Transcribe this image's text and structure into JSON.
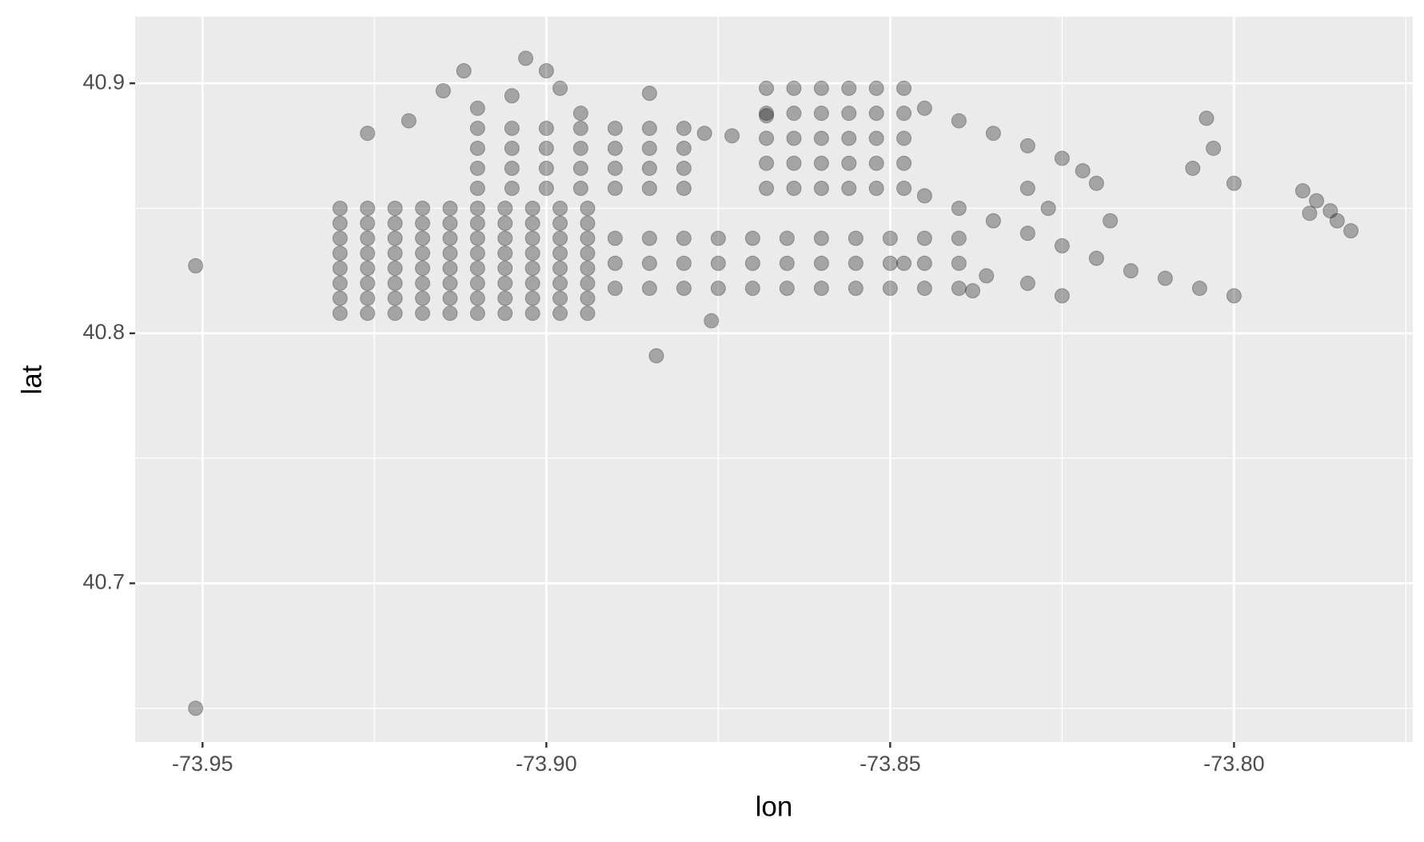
{
  "chart_data": {
    "type": "scatter",
    "x_label": "lon",
    "y_label": "lat",
    "xlim": [
      -73.9598,
      -73.774
    ],
    "ylim": [
      40.6365,
      40.9266
    ],
    "xticks": [
      -73.95,
      {
        "value": -73.9,
        "label": "-73.90"
      },
      -73.85,
      {
        "value": -73.8,
        "label": "-73.80"
      }
    ],
    "yticks": [
      40.7,
      40.8,
      40.9
    ],
    "xminor": [
      -73.925,
      -73.875,
      -73.825,
      -73.775
    ],
    "yminor": [
      40.65,
      40.75,
      40.85
    ],
    "grid": true,
    "color": "#000000",
    "alpha": 0.3,
    "x": [
      -73.93,
      -73.926,
      -73.922,
      -73.918,
      -73.914,
      -73.91,
      -73.906,
      -73.902,
      -73.898,
      -73.894,
      -73.93,
      -73.926,
      -73.922,
      -73.918,
      -73.914,
      -73.91,
      -73.906,
      -73.902,
      -73.898,
      -73.894,
      -73.93,
      -73.926,
      -73.922,
      -73.918,
      -73.914,
      -73.91,
      -73.906,
      -73.902,
      -73.898,
      -73.894,
      -73.93,
      -73.926,
      -73.922,
      -73.918,
      -73.914,
      -73.91,
      -73.906,
      -73.902,
      -73.898,
      -73.894,
      -73.93,
      -73.926,
      -73.922,
      -73.918,
      -73.914,
      -73.91,
      -73.906,
      -73.902,
      -73.898,
      -73.894,
      -73.93,
      -73.926,
      -73.922,
      -73.918,
      -73.914,
      -73.91,
      -73.906,
      -73.902,
      -73.898,
      -73.894,
      -73.93,
      -73.926,
      -73.922,
      -73.918,
      -73.914,
      -73.91,
      -73.906,
      -73.902,
      -73.898,
      -73.894,
      -73.93,
      -73.926,
      -73.922,
      -73.918,
      -73.914,
      -73.91,
      -73.906,
      -73.902,
      -73.898,
      -73.894,
      -73.91,
      -73.905,
      -73.9,
      -73.895,
      -73.89,
      -73.885,
      -73.88,
      -73.91,
      -73.905,
      -73.9,
      -73.895,
      -73.89,
      -73.885,
      -73.88,
      -73.91,
      -73.905,
      -73.9,
      -73.895,
      -73.89,
      -73.885,
      -73.88,
      -73.91,
      -73.905,
      -73.9,
      -73.895,
      -73.89,
      -73.885,
      -73.88,
      -73.89,
      -73.885,
      -73.88,
      -73.875,
      -73.87,
      -73.865,
      -73.86,
      -73.855,
      -73.85,
      -73.845,
      -73.84,
      -73.89,
      -73.885,
      -73.88,
      -73.875,
      -73.87,
      -73.865,
      -73.86,
      -73.855,
      -73.85,
      -73.845,
      -73.84,
      -73.89,
      -73.885,
      -73.88,
      -73.875,
      -73.87,
      -73.865,
      -73.86,
      -73.855,
      -73.85,
      -73.845,
      -73.84,
      -73.868,
      -73.864,
      -73.86,
      -73.856,
      -73.852,
      -73.848,
      -73.868,
      -73.864,
      -73.86,
      -73.856,
      -73.852,
      -73.848,
      -73.868,
      -73.864,
      -73.86,
      -73.856,
      -73.852,
      -73.848,
      -73.868,
      -73.864,
      -73.86,
      -73.856,
      -73.852,
      -73.848,
      -73.868,
      -73.864,
      -73.86,
      -73.856,
      -73.852,
      -73.848,
      -73.905,
      -73.9,
      -73.903,
      -73.898,
      -73.91,
      -73.915,
      -73.912,
      -73.92,
      -73.926,
      -73.895,
      -73.845,
      -73.84,
      -73.835,
      -73.83,
      -73.825,
      -73.822,
      -73.84,
      -73.835,
      -73.83,
      -73.825,
      -73.82,
      -73.815,
      -73.83,
      -73.825,
      -73.81,
      -73.805,
      -73.836,
      -73.838,
      -73.848,
      -73.845,
      -73.827,
      -73.818,
      -73.82,
      -73.83,
      -73.79,
      -73.788,
      -73.786,
      -73.785,
      -73.783,
      -73.789,
      -73.951,
      -73.951,
      -73.884,
      -73.876,
      -73.806,
      -73.804,
      -73.8,
      -73.8,
      -73.803,
      -73.885,
      -73.868,
      -73.877,
      -73.873
    ],
    "y": [
      40.808,
      40.808,
      40.808,
      40.808,
      40.808,
      40.808,
      40.808,
      40.808,
      40.808,
      40.808,
      40.814,
      40.814,
      40.814,
      40.814,
      40.814,
      40.814,
      40.814,
      40.814,
      40.814,
      40.814,
      40.82,
      40.82,
      40.82,
      40.82,
      40.82,
      40.82,
      40.82,
      40.82,
      40.82,
      40.82,
      40.826,
      40.826,
      40.826,
      40.826,
      40.826,
      40.826,
      40.826,
      40.826,
      40.826,
      40.826,
      40.832,
      40.832,
      40.832,
      40.832,
      40.832,
      40.832,
      40.832,
      40.832,
      40.832,
      40.832,
      40.838,
      40.838,
      40.838,
      40.838,
      40.838,
      40.838,
      40.838,
      40.838,
      40.838,
      40.838,
      40.844,
      40.844,
      40.844,
      40.844,
      40.844,
      40.844,
      40.844,
      40.844,
      40.844,
      40.844,
      40.85,
      40.85,
      40.85,
      40.85,
      40.85,
      40.85,
      40.85,
      40.85,
      40.85,
      40.85,
      40.858,
      40.858,
      40.858,
      40.858,
      40.858,
      40.858,
      40.858,
      40.866,
      40.866,
      40.866,
      40.866,
      40.866,
      40.866,
      40.866,
      40.874,
      40.874,
      40.874,
      40.874,
      40.874,
      40.874,
      40.874,
      40.882,
      40.882,
      40.882,
      40.882,
      40.882,
      40.882,
      40.882,
      40.818,
      40.818,
      40.818,
      40.818,
      40.818,
      40.818,
      40.818,
      40.818,
      40.818,
      40.818,
      40.818,
      40.828,
      40.828,
      40.828,
      40.828,
      40.828,
      40.828,
      40.828,
      40.828,
      40.828,
      40.828,
      40.828,
      40.838,
      40.838,
      40.838,
      40.838,
      40.838,
      40.838,
      40.838,
      40.838,
      40.838,
      40.838,
      40.838,
      40.858,
      40.858,
      40.858,
      40.858,
      40.858,
      40.858,
      40.868,
      40.868,
      40.868,
      40.868,
      40.868,
      40.868,
      40.878,
      40.878,
      40.878,
      40.878,
      40.878,
      40.878,
      40.888,
      40.888,
      40.888,
      40.888,
      40.888,
      40.888,
      40.898,
      40.898,
      40.898,
      40.898,
      40.898,
      40.898,
      40.895,
      40.905,
      40.91,
      40.898,
      40.89,
      40.897,
      40.905,
      40.885,
      40.88,
      40.888,
      40.89,
      40.885,
      40.88,
      40.875,
      40.87,
      40.865,
      40.85,
      40.845,
      40.84,
      40.835,
      40.83,
      40.825,
      40.82,
      40.815,
      40.822,
      40.818,
      40.823,
      40.817,
      40.828,
      40.855,
      40.85,
      40.845,
      40.86,
      40.858,
      40.857,
      40.853,
      40.849,
      40.845,
      40.841,
      40.848,
      40.827,
      40.65,
      40.791,
      40.805,
      40.866,
      40.886,
      40.86,
      40.815,
      40.874,
      40.896,
      40.887,
      40.88,
      40.879
    ]
  }
}
